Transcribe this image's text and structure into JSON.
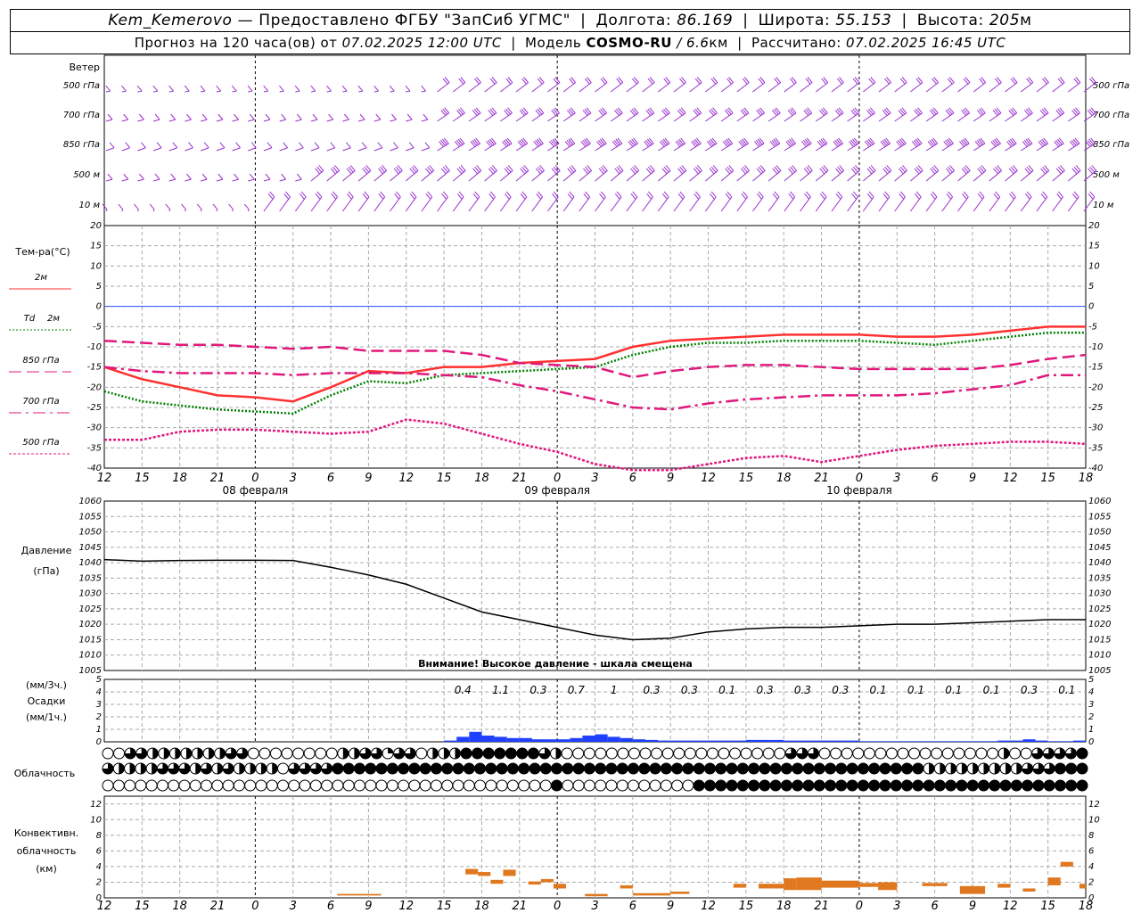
{
  "header": {
    "station": "Kem_Kemerovo",
    "dash": "—",
    "provider": "Предоставлено ФГБУ \"ЗапСиб УГМС\"",
    "lon_label": "Долгота:",
    "lon_value": "86.169",
    "lat_label": "Широта:",
    "lat_value": "55.153",
    "alt_label": "Высота:",
    "alt_value": "205",
    "alt_unit": "м",
    "forecast_label": "Прогноз на 120 часа(ов)  от",
    "forecast_time": "07.02.2025 12:00 UTC",
    "model_label": "Модель",
    "model_name": "COSMO-RU",
    "model_res": "/ 6.6",
    "model_res_unit": "км",
    "calc_label": "Рассчитано:",
    "calc_time": "07.02.2025 16:45 UTC"
  },
  "chart_data": {
    "type": "line",
    "x_hour_labels": [
      "12",
      "15",
      "18",
      "21",
      "0",
      "3",
      "6",
      "9",
      "12",
      "15",
      "18",
      "21",
      "0",
      "3",
      "6",
      "9",
      "12",
      "15",
      "18",
      "21",
      "0",
      "3",
      "6",
      "9",
      "12",
      "15",
      "18"
    ],
    "date_labels": [
      {
        "text": "08 февраля",
        "at_hour": 12
      },
      {
        "text": "09 февраля",
        "at_hour": 36
      },
      {
        "text": "10 февраля",
        "at_hour": 60
      }
    ],
    "wind": {
      "title": "Ветер",
      "levels": [
        "500 гПа",
        "700 гПа",
        "850 гПа",
        "500 м",
        "10  м"
      ],
      "color": "#9932cc"
    },
    "temperature": {
      "ylabel": "Тем-ра(°C)",
      "ylim": [
        -40,
        20
      ],
      "yticks": [
        20,
        15,
        10,
        5,
        0,
        -5,
        -10,
        -15,
        -20,
        -25,
        -30,
        -35,
        -40
      ],
      "x_hours": [
        0,
        3,
        6,
        9,
        12,
        15,
        18,
        21,
        24,
        27,
        30,
        33,
        36,
        39,
        42,
        45,
        48,
        51,
        54,
        57,
        60,
        63,
        66,
        69,
        72,
        75,
        78
      ],
      "series": [
        {
          "name": "2м",
          "color": "#ff3030",
          "dash": "solid",
          "values": [
            -15,
            -18,
            -20,
            -22,
            -22.5,
            -23.5,
            -20,
            -16,
            -16.5,
            -15,
            -15,
            -14,
            -13.5,
            -13,
            -10,
            -8.5,
            -8,
            -7.5,
            -7,
            -7,
            -7,
            -7.5,
            -7.5,
            -7,
            -6,
            -5,
            -5
          ]
        },
        {
          "name": "2м",
          "name_prefix": "Td",
          "color": "#008000",
          "dash": "dotted",
          "values": [
            -21,
            -23.5,
            -24.5,
            -25.5,
            -26,
            -26.5,
            -22,
            -18.5,
            -19,
            -17,
            -16.5,
            -16,
            -15.5,
            -15,
            -12,
            -10,
            -9,
            -9,
            -8.5,
            -8.5,
            -8.5,
            -9,
            -9.5,
            -8.5,
            -7.5,
            -6.5,
            -6.5
          ]
        },
        {
          "name": "850 гПа",
          "color": "#e0187c",
          "dash": "longdash",
          "values": [
            -8.5,
            -9,
            -9.5,
            -9.5,
            -10,
            -10.5,
            -10,
            -11,
            -11,
            -11,
            -12,
            -14,
            -14.5,
            -15,
            -17.5,
            -16,
            -15,
            -14.5,
            -14.5,
            -15,
            -15.5,
            -15.5,
            -15.5,
            -15.5,
            -14.5,
            -13,
            -12
          ]
        },
        {
          "name": "700 гПа",
          "color": "#e0187c",
          "dash": "dashdot",
          "values": [
            -15,
            -16,
            -16.5,
            -16.5,
            -16.5,
            -17,
            -16.5,
            -16.5,
            -16.5,
            -17,
            -17.5,
            -19.5,
            -21,
            -23,
            -25,
            -25.5,
            -24,
            -23,
            -22.5,
            -22,
            -22,
            -22,
            -21.5,
            -20.5,
            -19.5,
            -17,
            -17
          ]
        },
        {
          "name": "500 гПа",
          "color": "#e0187c",
          "dash": "shortdash",
          "values": [
            -33,
            -33,
            -31,
            -30.5,
            -30.5,
            -31,
            -31.5,
            -31,
            -28,
            -29,
            -31.5,
            -34,
            -36,
            -39,
            -40.5,
            -40.5,
            -39,
            -37.5,
            -37,
            -38.5,
            -37,
            -35.5,
            -34.5,
            -34,
            -33.5,
            -33.5,
            -34
          ]
        }
      ],
      "zero_line_color": "#3050ff"
    },
    "pressure": {
      "ylabel_1": "Давление",
      "ylabel_2": "(гПа)",
      "ylim": [
        1005,
        1060
      ],
      "yticks": [
        1060,
        1055,
        1050,
        1045,
        1040,
        1035,
        1030,
        1025,
        1020,
        1015,
        1010,
        1005
      ],
      "x_hours": [
        0,
        3,
        6,
        9,
        12,
        15,
        18,
        21,
        24,
        27,
        30,
        33,
        36,
        39,
        42,
        45,
        48,
        51,
        54,
        57,
        60,
        63,
        66,
        69,
        72,
        75,
        78
      ],
      "values": [
        1041,
        1040.5,
        1040.7,
        1040.8,
        1040.8,
        1040.7,
        1038.5,
        1036,
        1033,
        1028.5,
        1024,
        1021.5,
        1019,
        1016.5,
        1015,
        1015.5,
        1017.5,
        1018.5,
        1019,
        1019,
        1019.5,
        1020,
        1020,
        1020.5,
        1021,
        1021.5,
        1021.5
      ],
      "color": "#000000",
      "warning": "Внимание! Высокое давление - шкала смещена"
    },
    "precipitation": {
      "ylabel_1": "(мм/3ч.)",
      "ylabel_2": "Осадки",
      "ylabel_3": "(мм/1ч.)",
      "ylim": [
        0,
        5
      ],
      "yticks": [
        5,
        4,
        3,
        2,
        1,
        0
      ],
      "three_hour_totals": [
        {
          "hour": 28.5,
          "text": "0.4"
        },
        {
          "hour": 31.5,
          "text": "1.1"
        },
        {
          "hour": 34.5,
          "text": "0.3"
        },
        {
          "hour": 37.5,
          "text": "0.7"
        },
        {
          "hour": 40.5,
          "text": "1"
        },
        {
          "hour": 43.5,
          "text": "0.3"
        },
        {
          "hour": 46.5,
          "text": "0.3"
        },
        {
          "hour": 49.5,
          "text": "0.1"
        },
        {
          "hour": 52.5,
          "text": "0.3"
        },
        {
          "hour": 55.5,
          "text": "0.3"
        },
        {
          "hour": 58.5,
          "text": "0.3"
        },
        {
          "hour": 61.5,
          "text": "0.1"
        },
        {
          "hour": 64.5,
          "text": "0.1"
        },
        {
          "hour": 67.5,
          "text": "0.1"
        },
        {
          "hour": 70.5,
          "text": "0.1"
        },
        {
          "hour": 73.5,
          "text": "0.3"
        },
        {
          "hour": 76.5,
          "text": "0.1"
        }
      ],
      "hourly_values": [
        0,
        0,
        0,
        0,
        0,
        0,
        0,
        0,
        0,
        0,
        0,
        0,
        0,
        0,
        0,
        0,
        0,
        0,
        0,
        0,
        0,
        0,
        0,
        0,
        0,
        0,
        0,
        0.1,
        0.4,
        0.8,
        0.5,
        0.4,
        0.3,
        0.3,
        0.2,
        0.2,
        0.2,
        0.3,
        0.5,
        0.6,
        0.4,
        0.3,
        0.2,
        0.15,
        0.1,
        0.1,
        0.1,
        0.1,
        0.1,
        0.1,
        0.1,
        0.15,
        0.15,
        0.15,
        0.1,
        0.1,
        0.1,
        0.1,
        0.1,
        0.1,
        0.05,
        0.05,
        0.05,
        0.05,
        0.05,
        0.05,
        0.05,
        0.05,
        0.05,
        0.05,
        0.05,
        0.1,
        0.1,
        0.2,
        0.1,
        0.05,
        0.05,
        0.1
      ],
      "color": "#2040ff"
    },
    "cloudiness": {
      "ylabel": "Облачность",
      "rows_fraction_0_to_1": [
        [
          0,
          0,
          0.75,
          0.75,
          0.5,
          0.5,
          0.5,
          0.5,
          0.5,
          0.5,
          0.5,
          0.75,
          0.75,
          0,
          0,
          0,
          0,
          0,
          0,
          0,
          0,
          0.5,
          0.5,
          0.75,
          0.75,
          0.25,
          0.75,
          0.75,
          0,
          0.5,
          0.5,
          0.5,
          1,
          1,
          1,
          1,
          1,
          1,
          1,
          0.75,
          0.5,
          0,
          0,
          0,
          0,
          0,
          0,
          0,
          0,
          0,
          0,
          0,
          0,
          0,
          0,
          0,
          0,
          0,
          0,
          0,
          0,
          0.75,
          0.75,
          0.75,
          0,
          0,
          0,
          0,
          0,
          0,
          0,
          0,
          0,
          0,
          0,
          0,
          0,
          0,
          0,
          0,
          0.5,
          0,
          0,
          0.75,
          0.75,
          0.75,
          0.75,
          1
        ],
        [
          0.75,
          0.5,
          0.5,
          0.5,
          0.5,
          0.75,
          0.75,
          0.75,
          0.5,
          0.75,
          0.5,
          0.75,
          0.5,
          0.5,
          0.5,
          0.5,
          0,
          0.75,
          0.75,
          0.75,
          0.75,
          1,
          1,
          1,
          1,
          1,
          1,
          1,
          1,
          1,
          1,
          1,
          1,
          1,
          1,
          1,
          1,
          1,
          1,
          1,
          1,
          1,
          1,
          1,
          1,
          1,
          1,
          1,
          1,
          1,
          1,
          1,
          1,
          1,
          1,
          1,
          1,
          1,
          1,
          1,
          1,
          1,
          1,
          1,
          1,
          1,
          1,
          1,
          1,
          1,
          1,
          1,
          1,
          1,
          1,
          0.5,
          0.5,
          0.5,
          0.5,
          0.5,
          0.5,
          0.5,
          0.5,
          0.5,
          0.75,
          0.75,
          0.75,
          1,
          1,
          1
        ],
        [
          0,
          0,
          0,
          0,
          0,
          0,
          0,
          0,
          0,
          0,
          0,
          0,
          0,
          0,
          0,
          0,
          0,
          0,
          0,
          0,
          0,
          0,
          0,
          0,
          0,
          0,
          0,
          0,
          0,
          0,
          0,
          0,
          0,
          0,
          0,
          0,
          0,
          0,
          0,
          0,
          0,
          1,
          0,
          0,
          0,
          0,
          0,
          0,
          0,
          0,
          0,
          0,
          0,
          0,
          1,
          1,
          1,
          1,
          1,
          1,
          1,
          1,
          1,
          1,
          1,
          1,
          1,
          1,
          1,
          1,
          1,
          1,
          1,
          1,
          1,
          1,
          1,
          1,
          1,
          1,
          1,
          1,
          1,
          1,
          1,
          1,
          1,
          1,
          1,
          1
        ]
      ]
    },
    "convective": {
      "ylabel_1": "Конвективн.",
      "ylabel_2": "облачность",
      "ylabel_3": "(км)",
      "ylim": [
        0,
        13
      ],
      "yticks": [
        12,
        10,
        8,
        6,
        4,
        2,
        0
      ],
      "color": "#e07820",
      "segments_km": [
        {
          "from": 18.5,
          "to": 22,
          "base": 0.3,
          "top": 0.5
        },
        {
          "from": 28.7,
          "to": 29.7,
          "base": 3,
          "top": 3.7
        },
        {
          "from": 29.7,
          "to": 30.7,
          "base": 2.8,
          "top": 3.3
        },
        {
          "from": 30.7,
          "to": 31.7,
          "base": 1.8,
          "top": 2.3
        },
        {
          "from": 31.7,
          "to": 32.7,
          "base": 2.8,
          "top": 3.6
        },
        {
          "from": 33.7,
          "to": 34.7,
          "base": 1.7,
          "top": 2.1
        },
        {
          "from": 34.7,
          "to": 35.7,
          "base": 2.0,
          "top": 2.4
        },
        {
          "from": 35.7,
          "to": 36.7,
          "base": 1.2,
          "top": 1.8
        },
        {
          "from": 38.2,
          "to": 40,
          "base": 0.2,
          "top": 0.5
        },
        {
          "from": 41,
          "to": 42,
          "base": 1.2,
          "top": 1.6
        },
        {
          "from": 42,
          "to": 45,
          "base": 0.3,
          "top": 0.6
        },
        {
          "from": 45,
          "to": 46.5,
          "base": 0.5,
          "top": 0.8
        },
        {
          "from": 50,
          "to": 51,
          "base": 1.3,
          "top": 1.8
        },
        {
          "from": 52,
          "to": 54,
          "base": 1.2,
          "top": 1.8
        },
        {
          "from": 54,
          "to": 55,
          "base": 1.0,
          "top": 2.5
        },
        {
          "from": 55,
          "to": 57,
          "base": 1.0,
          "top": 2.6
        },
        {
          "from": 57,
          "to": 60,
          "base": 1.3,
          "top": 2.2
        },
        {
          "from": 60,
          "to": 61.5,
          "base": 1.4,
          "top": 1.9
        },
        {
          "from": 61.5,
          "to": 63,
          "base": 1.0,
          "top": 2.0
        },
        {
          "from": 65,
          "to": 67,
          "base": 1.5,
          "top": 1.9
        },
        {
          "from": 68,
          "to": 70,
          "base": 0.5,
          "top": 1.5
        },
        {
          "from": 71,
          "to": 72,
          "base": 1.3,
          "top": 1.8
        },
        {
          "from": 73,
          "to": 74,
          "base": 0.8,
          "top": 1.2
        },
        {
          "from": 75,
          "to": 76,
          "base": 1.6,
          "top": 2.6
        },
        {
          "from": 76,
          "to": 77,
          "base": 4.0,
          "top": 4.6
        },
        {
          "from": 77.5,
          "to": 78,
          "base": 1.2,
          "top": 1.8
        }
      ]
    }
  }
}
